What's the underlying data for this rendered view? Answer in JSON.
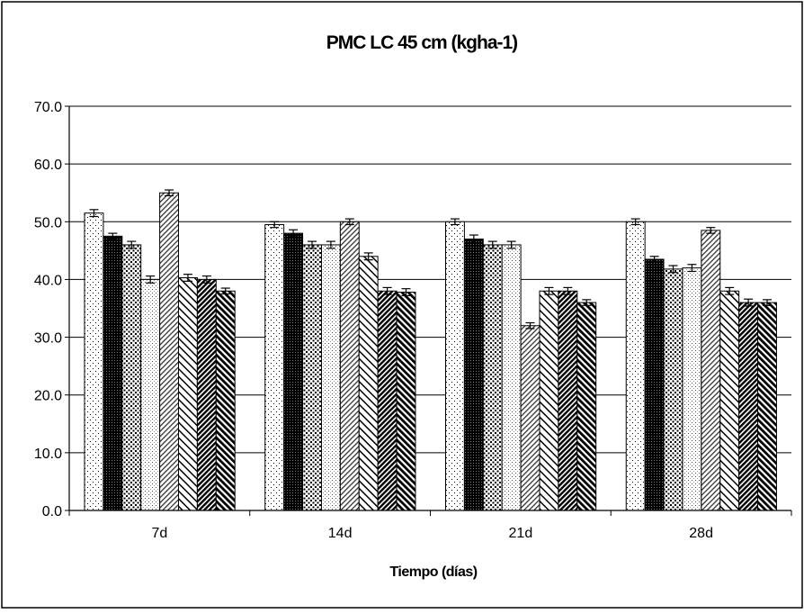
{
  "chart_data": {
    "type": "bar",
    "title": "PMC LC 45 cm (kgha-1)",
    "xlabel": "Tiempo (días)",
    "ylabel": "",
    "categories": [
      "7d",
      "14d",
      "21d",
      "28d"
    ],
    "ylim": [
      0,
      70
    ],
    "yticks": [
      0,
      10,
      20,
      30,
      40,
      50,
      60,
      70
    ],
    "ytick_labels": [
      "0.0",
      "10.0",
      "20.0",
      "30.0",
      "40.0",
      "50.0",
      "60.0",
      "70.0"
    ],
    "grid": true,
    "legend": "none",
    "error_bars": true,
    "series": [
      {
        "pattern": "sparse-dots",
        "values": [
          51.5,
          49.5,
          50.0,
          50.0
        ],
        "errors": [
          0.6,
          0.5,
          0.5,
          0.5
        ]
      },
      {
        "pattern": "solid-dark",
        "values": [
          47.5,
          48.0,
          47.0,
          43.5
        ],
        "errors": [
          0.5,
          0.6,
          0.7,
          0.5
        ]
      },
      {
        "pattern": "dense-dots",
        "values": [
          46.0,
          46.0,
          46.0,
          41.8
        ],
        "errors": [
          0.6,
          0.6,
          0.6,
          0.6
        ]
      },
      {
        "pattern": "fine-dots",
        "values": [
          40.0,
          46.0,
          46.0,
          42.0
        ],
        "errors": [
          0.6,
          0.6,
          0.6,
          0.6
        ]
      },
      {
        "pattern": "light-diagonal",
        "values": [
          55.0,
          50.0,
          32.0,
          48.5
        ],
        "errors": [
          0.5,
          0.5,
          0.5,
          0.5
        ]
      },
      {
        "pattern": "wide-diagonal",
        "values": [
          40.3,
          44.0,
          38.0,
          38.0
        ],
        "errors": [
          0.6,
          0.6,
          0.6,
          0.6
        ]
      },
      {
        "pattern": "dark-diagonal",
        "values": [
          40.0,
          38.0,
          38.0,
          36.0
        ],
        "errors": [
          0.6,
          0.6,
          0.6,
          0.6
        ]
      },
      {
        "pattern": "heavy-diagonal",
        "values": [
          38.0,
          37.8,
          36.0,
          36.0
        ],
        "errors": [
          0.5,
          0.6,
          0.5,
          0.5
        ]
      }
    ]
  }
}
